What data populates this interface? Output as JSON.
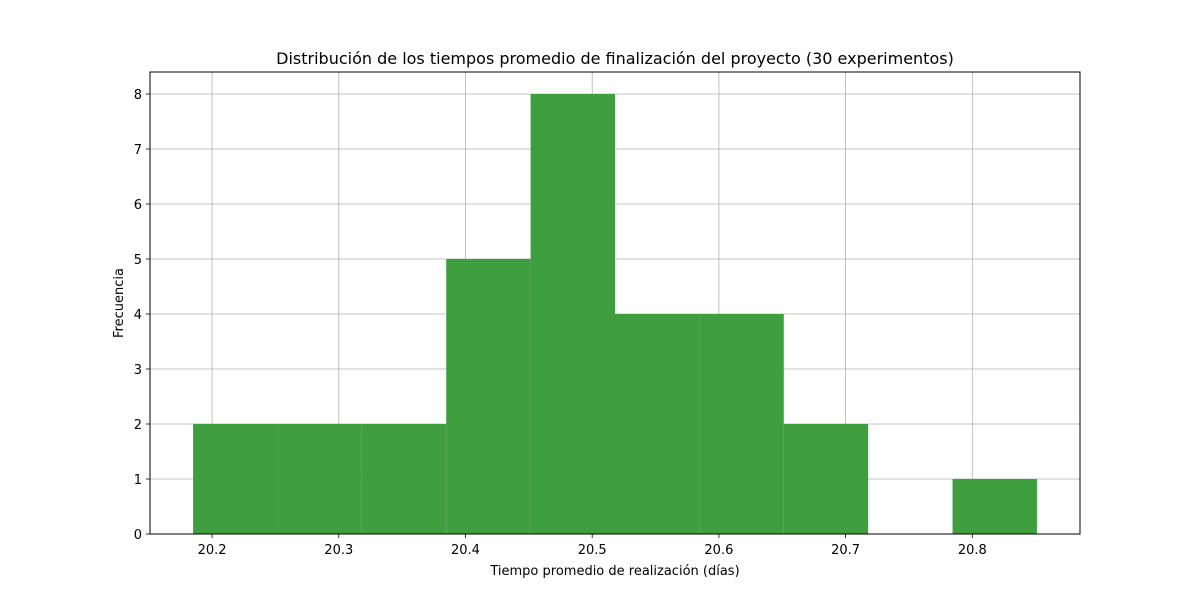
{
  "chart_data": {
    "type": "bar",
    "title": "Distribución de los tiempos promedio de finalización del proyecto (30 experimentos)",
    "xlabel": "Tiempo promedio de realización (días)",
    "ylabel": "Frecuencia",
    "bin_edges": [
      20.185,
      20.2516,
      20.3182,
      20.3848,
      20.4514,
      20.518,
      20.5846,
      20.6512,
      20.7178,
      20.7844,
      20.851
    ],
    "values": [
      2,
      2,
      2,
      5,
      8,
      4,
      4,
      2,
      0,
      1
    ],
    "xlim": [
      20.151,
      20.885
    ],
    "ylim": [
      0,
      8.4
    ],
    "xticks": [
      20.2,
      20.3,
      20.4,
      20.5,
      20.6,
      20.7,
      20.8
    ],
    "xtick_labels": [
      "20.2",
      "20.3",
      "20.4",
      "20.5",
      "20.6",
      "20.7",
      "20.8"
    ],
    "yticks": [
      0,
      1,
      2,
      3,
      4,
      5,
      6,
      7,
      8
    ],
    "ytick_labels": [
      "0",
      "1",
      "2",
      "3",
      "4",
      "5",
      "6",
      "7",
      "8"
    ],
    "bar_color": "#3f9f3f",
    "grid": true
  }
}
